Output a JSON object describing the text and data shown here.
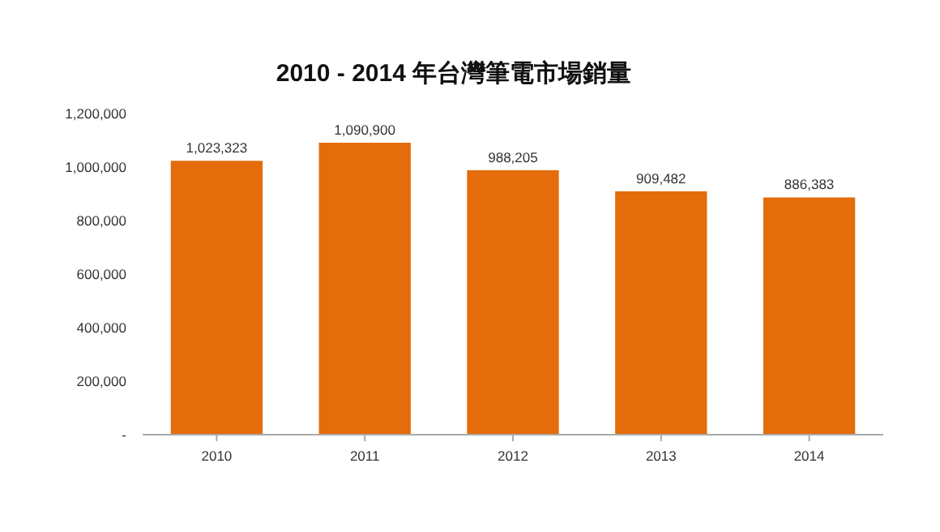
{
  "chart_data": {
    "type": "bar",
    "title": "2010 - 2014 年台灣筆電市場銷量",
    "categories": [
      "2010",
      "2011",
      "2012",
      "2013",
      "2014"
    ],
    "values": [
      1023323,
      1090900,
      988205,
      909482,
      886383
    ],
    "value_labels": [
      "1,023,323",
      "1,090,900",
      "988,205",
      "909,482",
      "886,383"
    ],
    "color": "#e46c0a",
    "ylim": [
      0,
      1200000
    ],
    "yticks": [
      {
        "value": 0,
        "label": "-"
      },
      {
        "value": 200000,
        "label": "200,000"
      },
      {
        "value": 400000,
        "label": "400,000"
      },
      {
        "value": 600000,
        "label": "600,000"
      },
      {
        "value": 800000,
        "label": "800,000"
      },
      {
        "value": 1000000,
        "label": "1,000,000"
      },
      {
        "value": 1200000,
        "label": "1,200,000"
      }
    ],
    "grid": false
  }
}
